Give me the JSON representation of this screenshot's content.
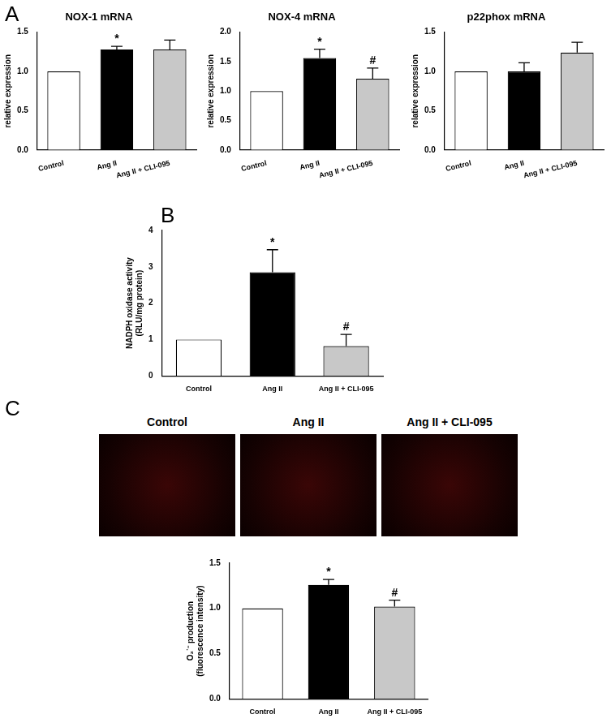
{
  "chart_data": [
    {
      "type": "bar",
      "panel": "A",
      "title": "NOX-1 mRNA",
      "ylabel": [
        "relative expression"
      ],
      "categories": [
        "Control",
        "Ang II",
        "Ang II + CLI-095"
      ],
      "values": [
        1.0,
        1.28,
        1.28
      ],
      "errors": [
        null,
        0.04,
        0.12
      ],
      "significance": [
        null,
        "*",
        null
      ],
      "colors": [
        "#ffffff",
        "#000000",
        "#c8c8c8"
      ],
      "ylim": [
        0,
        1.5
      ],
      "yticks": [
        {
          "value": 0,
          "label": "0.0"
        },
        {
          "value": 0.5,
          "label": "0.5"
        },
        {
          "value": 1,
          "label": "1.0"
        },
        {
          "value": 1.5,
          "label": "1.5"
        }
      ],
      "grid": false
    },
    {
      "type": "bar",
      "title": "NOX-4 mRNA",
      "ylabel": [
        "relative expression"
      ],
      "categories": [
        "Control",
        "Ang II",
        "Ang II + CLI-095"
      ],
      "values": [
        1.0,
        1.56,
        1.21
      ],
      "errors": [
        null,
        0.15,
        0.18
      ],
      "significance": [
        null,
        "*",
        "#"
      ],
      "colors": [
        "#ffffff",
        "#000000",
        "#c8c8c8"
      ],
      "ylim": [
        0,
        2
      ],
      "yticks": [
        {
          "value": 0,
          "label": "0.0"
        },
        {
          "value": 0.5,
          "label": "0.5"
        },
        {
          "value": 1,
          "label": "1.0"
        },
        {
          "value": 1.5,
          "label": "1.5"
        },
        {
          "value": 2,
          "label": "2.0"
        }
      ],
      "grid": false
    },
    {
      "type": "bar",
      "title": "p22phox mRNA",
      "ylabel": [
        "relative expression"
      ],
      "categories": [
        "Control",
        "Ang II",
        "Ang II + CLI-095"
      ],
      "values": [
        1.0,
        1.0,
        1.24
      ],
      "errors": [
        null,
        0.11,
        0.13
      ],
      "significance": [
        null,
        null,
        null
      ],
      "colors": [
        "#ffffff",
        "#000000",
        "#c8c8c8"
      ],
      "ylim": [
        0,
        1.5
      ],
      "yticks": [
        {
          "value": 0,
          "label": "0.0"
        },
        {
          "value": 0.5,
          "label": "0.5"
        },
        {
          "value": 1,
          "label": "1.0"
        },
        {
          "value": 1.5,
          "label": "1.5"
        }
      ],
      "grid": false
    },
    {
      "type": "bar",
      "panel": "B",
      "ylabel": [
        "NADPH oxidase activity",
        "(RLU/mg protein)"
      ],
      "categories": [
        "Control",
        "Ang II",
        "Ang II + CLI-095"
      ],
      "values": [
        1.0,
        2.85,
        0.82
      ],
      "errors": [
        null,
        0.62,
        0.32
      ],
      "significance": [
        null,
        "*",
        "#"
      ],
      "colors": [
        "#ffffff",
        "#000000",
        "#c8c8c8"
      ],
      "ylim": [
        0,
        4
      ],
      "yticks": [
        0,
        1,
        2,
        3,
        4
      ],
      "grid": false
    },
    {
      "type": "bar",
      "panel": "C",
      "ylabel": [
        "O₂˙⁻ production",
        "(fluorescence intensity)"
      ],
      "categories": [
        "Control",
        "Ang II",
        "Ang II + CLI-095"
      ],
      "values": [
        1.0,
        1.26,
        1.02
      ],
      "errors": [
        null,
        0.06,
        0.07
      ],
      "significance": [
        null,
        "*",
        "#"
      ],
      "colors": [
        "#ffffff",
        "#000000",
        "#c8c8c8"
      ],
      "ylim": [
        0,
        1.5
      ],
      "yticks": [
        {
          "value": 0,
          "label": "0.0"
        },
        {
          "value": 0.5,
          "label": "0.5"
        },
        {
          "value": 1,
          "label": "1.0"
        },
        {
          "value": 1.5,
          "label": "1.5"
        }
      ],
      "grid": false
    }
  ],
  "micrographs": {
    "labels": [
      "Control",
      "Ang II",
      "Ang II + CLI-095"
    ]
  }
}
